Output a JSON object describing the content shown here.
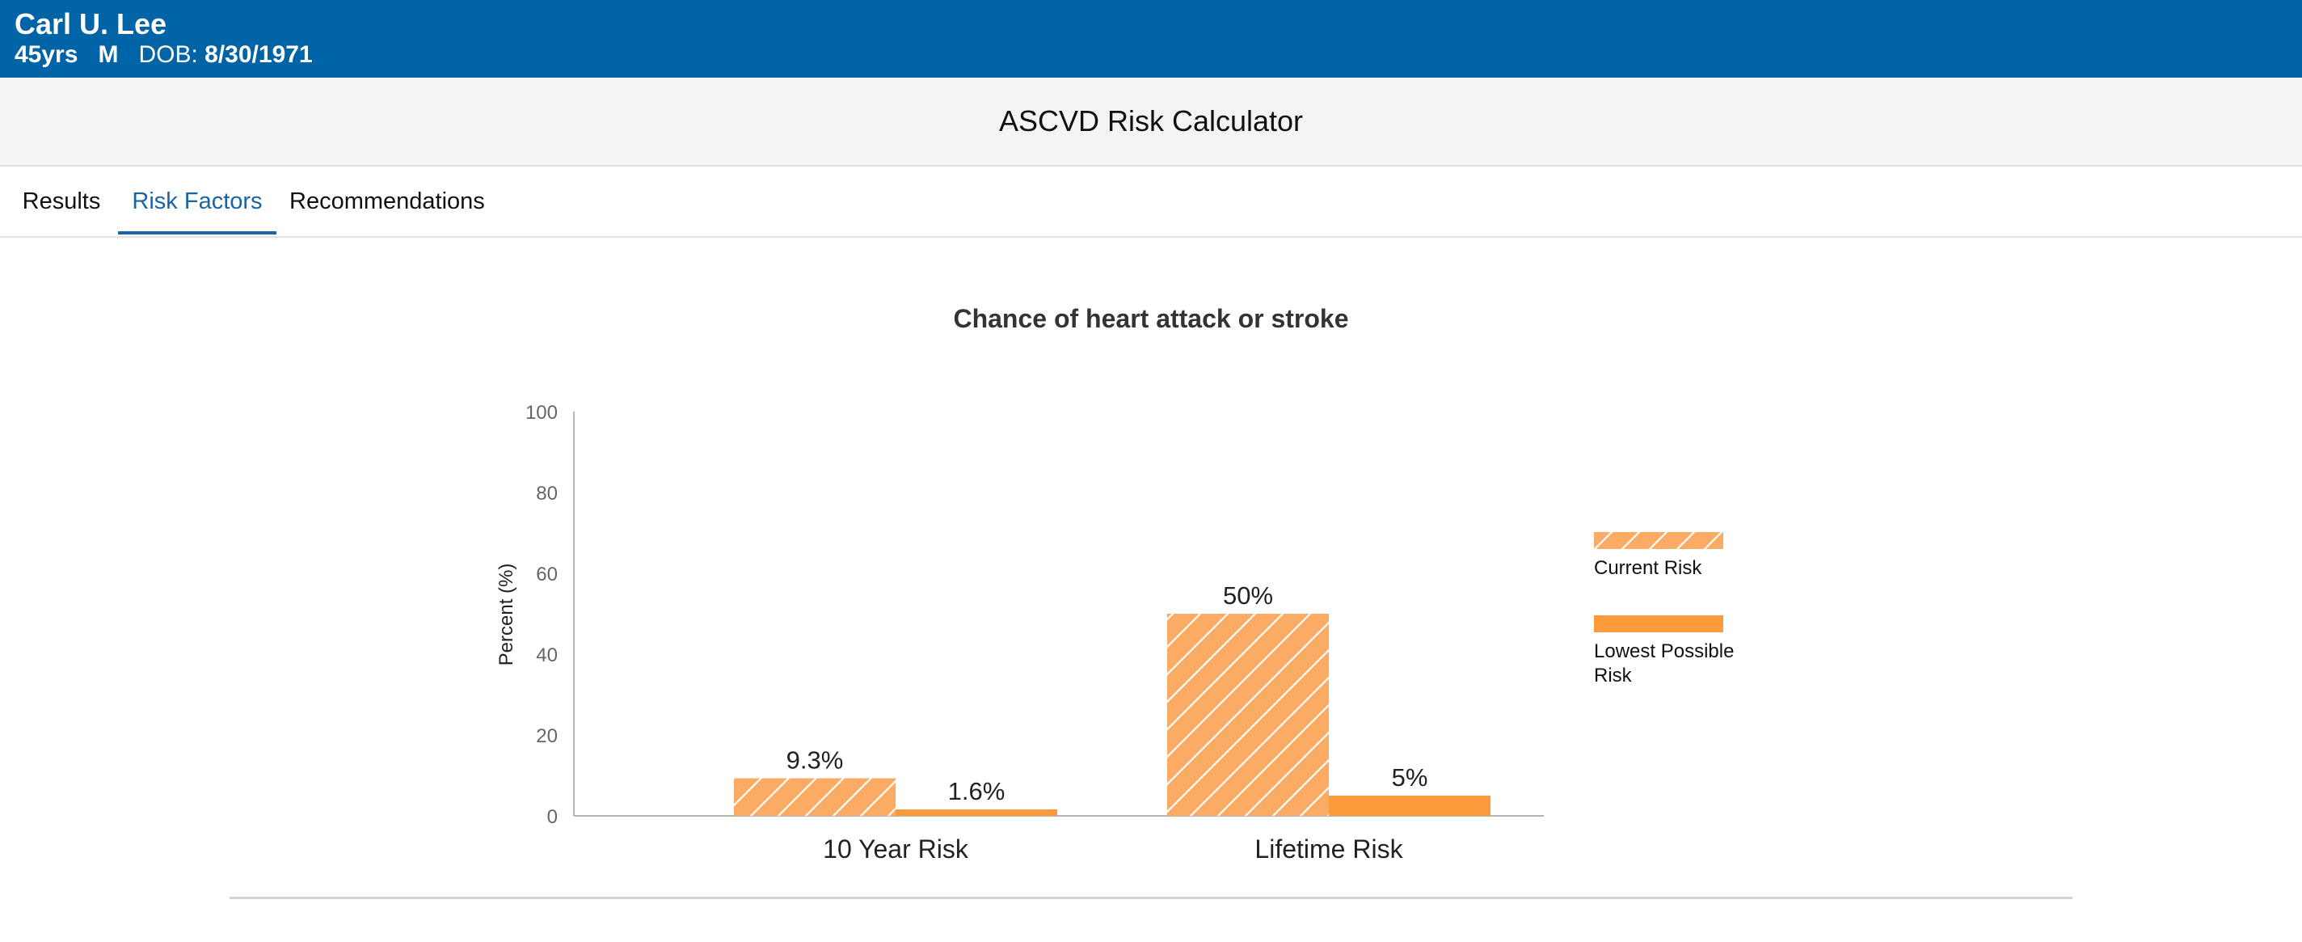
{
  "patient": {
    "name": "Carl U. Lee",
    "age": "45yrs",
    "sex": "M",
    "dob_label": "DOB:",
    "dob": "8/30/1971"
  },
  "app": {
    "title": "ASCVD Risk Calculator"
  },
  "tabs": [
    {
      "label": "Results",
      "active": false
    },
    {
      "label": "Risk Factors",
      "active": true
    },
    {
      "label": "Recommendations",
      "active": false
    }
  ],
  "colors": {
    "banner": "#0064a6",
    "accent": "#1a64a6",
    "current_risk": "#fbab63",
    "lowest_risk": "#fd9a3b"
  },
  "chart_data": {
    "type": "bar",
    "title": "Chance of heart attack or stroke",
    "ylabel": "Percent (%)",
    "xlabel": "",
    "ylim": [
      0,
      100
    ],
    "yticks": [
      0,
      20,
      40,
      60,
      80,
      100
    ],
    "categories": [
      "10 Year Risk",
      "Lifetime Risk"
    ],
    "series": [
      {
        "name": "Current Risk",
        "values": [
          9.3,
          50
        ],
        "labels": [
          "9.3%",
          "50%"
        ],
        "pattern": "hatched",
        "color": "#fbab63"
      },
      {
        "name": "Lowest Possible Risk",
        "values": [
          1.6,
          5
        ],
        "labels": [
          "1.6%",
          "5%"
        ],
        "pattern": "solid",
        "color": "#fd9a3b"
      }
    ],
    "legend_position": "right",
    "grid": false
  }
}
